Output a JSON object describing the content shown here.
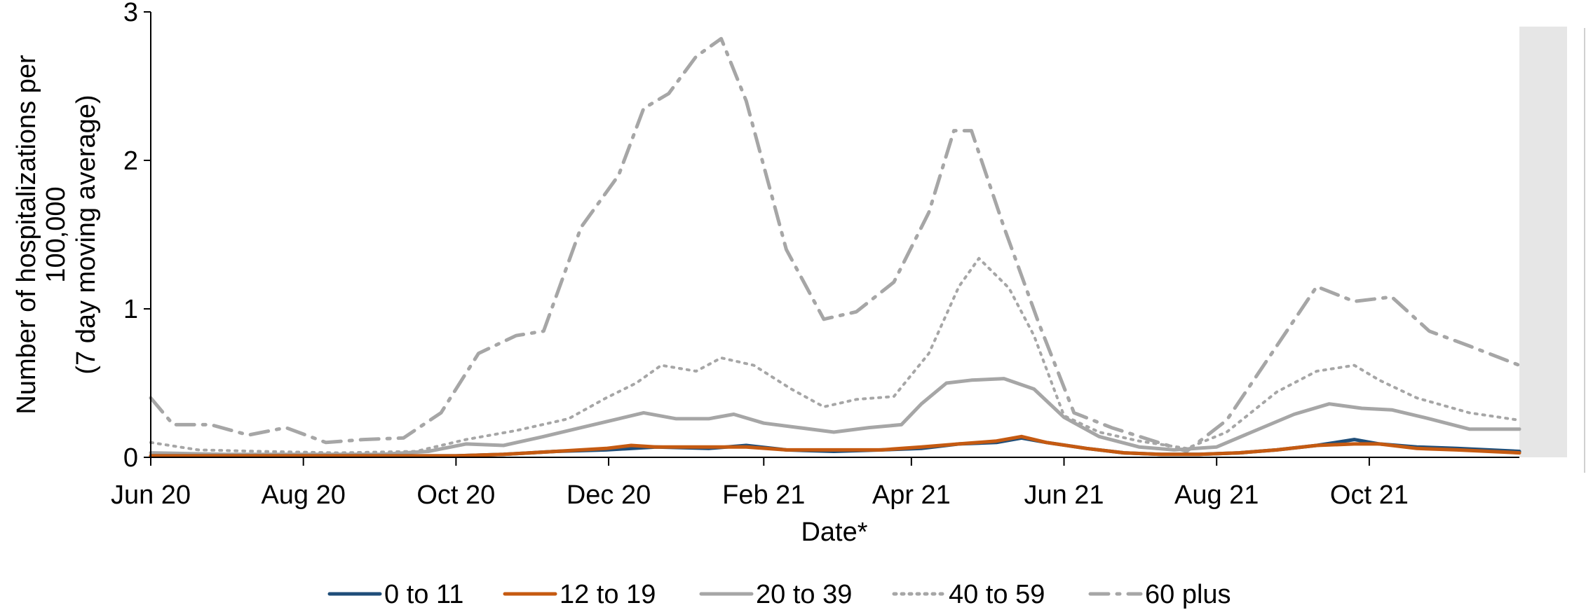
{
  "chart_data": {
    "type": "line",
    "title": "",
    "xlabel": "Date*",
    "ylabel_lines": [
      "Number of hospitalizations per",
      "100,000",
      "(7 day moving average)"
    ],
    "x_domain": [
      "2020-06-01",
      "2021-11-30"
    ],
    "ylim": [
      0,
      3
    ],
    "yticks": [
      "0",
      "1",
      "2",
      "3"
    ],
    "xticks": [
      {
        "date": "2020-06-01",
        "label": "Jun 20"
      },
      {
        "date": "2020-08-01",
        "label": "Aug 20"
      },
      {
        "date": "2020-10-01",
        "label": "Oct 20"
      },
      {
        "date": "2020-12-01",
        "label": "Dec 20"
      },
      {
        "date": "2021-02-01",
        "label": "Feb 21"
      },
      {
        "date": "2021-04-01",
        "label": "Apr 21"
      },
      {
        "date": "2021-06-01",
        "label": "Jun 21"
      },
      {
        "date": "2021-08-01",
        "label": "Aug 21"
      },
      {
        "date": "2021-10-01",
        "label": "Oct 21"
      }
    ],
    "grid": false,
    "legend_position": "bottom",
    "series": [
      {
        "name": "0 to 11",
        "color": "#1f4e79",
        "dash": "solid",
        "points": [
          [
            "2020-06-01",
            0.01
          ],
          [
            "2020-07-01",
            0.01
          ],
          [
            "2020-08-01",
            0.01
          ],
          [
            "2020-09-01",
            0.01
          ],
          [
            "2020-10-01",
            0.01
          ],
          [
            "2020-10-20",
            0.02
          ],
          [
            "2020-11-10",
            0.04
          ],
          [
            "2020-11-30",
            0.05
          ],
          [
            "2020-12-20",
            0.07
          ],
          [
            "2021-01-10",
            0.06
          ],
          [
            "2021-01-25",
            0.08
          ],
          [
            "2021-02-10",
            0.05
          ],
          [
            "2021-03-01",
            0.04
          ],
          [
            "2021-03-20",
            0.05
          ],
          [
            "2021-04-05",
            0.06
          ],
          [
            "2021-04-20",
            0.09
          ],
          [
            "2021-05-05",
            0.1
          ],
          [
            "2021-05-15",
            0.13
          ],
          [
            "2021-05-25",
            0.1
          ],
          [
            "2021-06-10",
            0.06
          ],
          [
            "2021-06-25",
            0.03
          ],
          [
            "2021-07-10",
            0.02
          ],
          [
            "2021-07-25",
            0.02
          ],
          [
            "2021-08-10",
            0.03
          ],
          [
            "2021-08-25",
            0.05
          ],
          [
            "2021-09-10",
            0.08
          ],
          [
            "2021-09-25",
            0.12
          ],
          [
            "2021-10-05",
            0.09
          ],
          [
            "2021-10-20",
            0.07
          ],
          [
            "2021-11-05",
            0.06
          ],
          [
            "2021-11-30",
            0.04
          ]
        ]
      },
      {
        "name": "12 to 19",
        "color": "#c55a11",
        "dash": "solid",
        "points": [
          [
            "2020-06-01",
            0.01
          ],
          [
            "2020-07-01",
            0.01
          ],
          [
            "2020-08-01",
            0.01
          ],
          [
            "2020-09-01",
            0.01
          ],
          [
            "2020-10-01",
            0.01
          ],
          [
            "2020-10-20",
            0.02
          ],
          [
            "2020-11-10",
            0.04
          ],
          [
            "2020-11-30",
            0.06
          ],
          [
            "2020-12-10",
            0.08
          ],
          [
            "2020-12-20",
            0.07
          ],
          [
            "2021-01-10",
            0.07
          ],
          [
            "2021-01-25",
            0.07
          ],
          [
            "2021-02-10",
            0.05
          ],
          [
            "2021-03-01",
            0.05
          ],
          [
            "2021-03-20",
            0.05
          ],
          [
            "2021-04-05",
            0.07
          ],
          [
            "2021-04-20",
            0.09
          ],
          [
            "2021-05-05",
            0.11
          ],
          [
            "2021-05-15",
            0.14
          ],
          [
            "2021-05-25",
            0.1
          ],
          [
            "2021-06-10",
            0.06
          ],
          [
            "2021-06-25",
            0.03
          ],
          [
            "2021-07-10",
            0.02
          ],
          [
            "2021-07-25",
            0.02
          ],
          [
            "2021-08-10",
            0.03
          ],
          [
            "2021-08-25",
            0.05
          ],
          [
            "2021-09-10",
            0.08
          ],
          [
            "2021-09-25",
            0.09
          ],
          [
            "2021-10-05",
            0.09
          ],
          [
            "2021-10-20",
            0.06
          ],
          [
            "2021-11-05",
            0.05
          ],
          [
            "2021-11-30",
            0.03
          ]
        ]
      },
      {
        "name": "20 to 39",
        "color": "#a6a6a6",
        "dash": "solid",
        "points": [
          [
            "2020-06-01",
            0.03
          ],
          [
            "2020-07-01",
            0.02
          ],
          [
            "2020-08-01",
            0.02
          ],
          [
            "2020-09-01",
            0.02
          ],
          [
            "2020-09-20",
            0.04
          ],
          [
            "2020-10-05",
            0.09
          ],
          [
            "2020-10-20",
            0.08
          ],
          [
            "2020-11-05",
            0.14
          ],
          [
            "2020-11-20",
            0.2
          ],
          [
            "2020-12-05",
            0.26
          ],
          [
            "2020-12-15",
            0.3
          ],
          [
            "2020-12-28",
            0.26
          ],
          [
            "2021-01-10",
            0.26
          ],
          [
            "2021-01-20",
            0.29
          ],
          [
            "2021-02-01",
            0.23
          ],
          [
            "2021-02-15",
            0.2
          ],
          [
            "2021-03-01",
            0.17
          ],
          [
            "2021-03-15",
            0.2
          ],
          [
            "2021-03-28",
            0.22
          ],
          [
            "2021-04-05",
            0.36
          ],
          [
            "2021-04-15",
            0.5
          ],
          [
            "2021-04-25",
            0.52
          ],
          [
            "2021-05-08",
            0.53
          ],
          [
            "2021-05-20",
            0.46
          ],
          [
            "2021-06-01",
            0.27
          ],
          [
            "2021-06-15",
            0.14
          ],
          [
            "2021-07-01",
            0.07
          ],
          [
            "2021-07-15",
            0.05
          ],
          [
            "2021-08-01",
            0.07
          ],
          [
            "2021-08-15",
            0.17
          ],
          [
            "2021-09-01",
            0.29
          ],
          [
            "2021-09-15",
            0.36
          ],
          [
            "2021-09-28",
            0.33
          ],
          [
            "2021-10-10",
            0.32
          ],
          [
            "2021-10-25",
            0.26
          ],
          [
            "2021-11-10",
            0.19
          ],
          [
            "2021-11-30",
            0.19
          ]
        ]
      },
      {
        "name": "40 to 59",
        "color": "#a6a6a6",
        "dash": "dot",
        "points": [
          [
            "2020-06-01",
            0.1
          ],
          [
            "2020-06-20",
            0.05
          ],
          [
            "2020-07-15",
            0.04
          ],
          [
            "2020-08-15",
            0.03
          ],
          [
            "2020-09-15",
            0.04
          ],
          [
            "2020-10-05",
            0.12
          ],
          [
            "2020-10-25",
            0.18
          ],
          [
            "2020-11-15",
            0.26
          ],
          [
            "2020-11-30",
            0.4
          ],
          [
            "2020-12-12",
            0.5
          ],
          [
            "2020-12-22",
            0.62
          ],
          [
            "2021-01-05",
            0.58
          ],
          [
            "2021-01-15",
            0.67
          ],
          [
            "2021-01-28",
            0.62
          ],
          [
            "2021-02-12",
            0.46
          ],
          [
            "2021-02-25",
            0.34
          ],
          [
            "2021-03-10",
            0.39
          ],
          [
            "2021-03-25",
            0.41
          ],
          [
            "2021-04-08",
            0.7
          ],
          [
            "2021-04-20",
            1.15
          ],
          [
            "2021-04-28",
            1.34
          ],
          [
            "2021-05-10",
            1.14
          ],
          [
            "2021-05-20",
            0.82
          ],
          [
            "2021-06-01",
            0.28
          ],
          [
            "2021-06-15",
            0.17
          ],
          [
            "2021-07-01",
            0.11
          ],
          [
            "2021-07-20",
            0.06
          ],
          [
            "2021-08-05",
            0.17
          ],
          [
            "2021-08-25",
            0.44
          ],
          [
            "2021-09-10",
            0.58
          ],
          [
            "2021-09-25",
            0.62
          ],
          [
            "2021-10-05",
            0.52
          ],
          [
            "2021-10-20",
            0.4
          ],
          [
            "2021-11-10",
            0.3
          ],
          [
            "2021-11-30",
            0.25
          ]
        ]
      },
      {
        "name": "60 plus",
        "color": "#a6a6a6",
        "dash": "dashdot",
        "points": [
          [
            "2020-06-01",
            0.4
          ],
          [
            "2020-06-10",
            0.22
          ],
          [
            "2020-06-25",
            0.22
          ],
          [
            "2020-07-10",
            0.15
          ],
          [
            "2020-07-25",
            0.2
          ],
          [
            "2020-08-10",
            0.1
          ],
          [
            "2020-08-25",
            0.12
          ],
          [
            "2020-09-10",
            0.13
          ],
          [
            "2020-09-25",
            0.3
          ],
          [
            "2020-10-10",
            0.7
          ],
          [
            "2020-10-25",
            0.82
          ],
          [
            "2020-11-05",
            0.85
          ],
          [
            "2020-11-20",
            1.55
          ],
          [
            "2020-12-05",
            1.9
          ],
          [
            "2020-12-15",
            2.35
          ],
          [
            "2020-12-25",
            2.45
          ],
          [
            "2021-01-05",
            2.7
          ],
          [
            "2021-01-15",
            2.82
          ],
          [
            "2021-01-25",
            2.4
          ],
          [
            "2021-02-10",
            1.4
          ],
          [
            "2021-02-25",
            0.93
          ],
          [
            "2021-03-10",
            0.98
          ],
          [
            "2021-03-25",
            1.18
          ],
          [
            "2021-04-08",
            1.65
          ],
          [
            "2021-04-18",
            2.2
          ],
          [
            "2021-04-25",
            2.2
          ],
          [
            "2021-05-08",
            1.55
          ],
          [
            "2021-05-22",
            0.9
          ],
          [
            "2021-06-05",
            0.3
          ],
          [
            "2021-06-20",
            0.2
          ],
          [
            "2021-07-05",
            0.12
          ],
          [
            "2021-07-20",
            0.04
          ],
          [
            "2021-08-05",
            0.25
          ],
          [
            "2021-08-25",
            0.75
          ],
          [
            "2021-09-10",
            1.15
          ],
          [
            "2021-09-25",
            1.05
          ],
          [
            "2021-10-10",
            1.08
          ],
          [
            "2021-10-25",
            0.85
          ],
          [
            "2021-11-10",
            0.75
          ],
          [
            "2021-11-30",
            0.62
          ]
        ]
      }
    ]
  },
  "colors": {
    "shade": "#e6e6e6",
    "axis": "#000000"
  }
}
